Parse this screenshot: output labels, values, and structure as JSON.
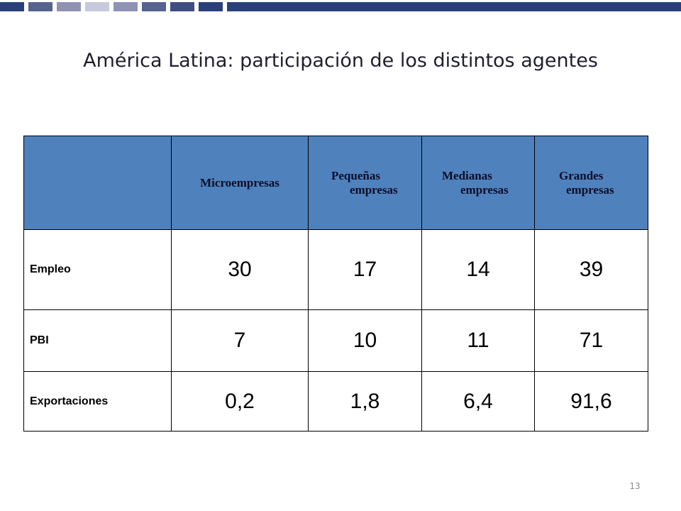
{
  "slide": {
    "title": "América Latina: participación de los distintos agentes",
    "number": "13",
    "colors": {
      "header_fill": "#4f81bd",
      "top_bar": "#2b3f7a"
    }
  },
  "table": {
    "columns": [
      {
        "line1": "",
        "line2": ""
      },
      {
        "line1": "Microempresas",
        "line2": ""
      },
      {
        "line1": "Pequeñas",
        "line2": "empresas"
      },
      {
        "line1": "Medianas",
        "line2": "empresas"
      },
      {
        "line1": "Grandes",
        "line2": "empresas"
      }
    ],
    "rows": [
      {
        "label": "Empleo",
        "values": [
          "30",
          "17",
          "14",
          "39"
        ]
      },
      {
        "label": "PBI",
        "values": [
          "7",
          "10",
          "11",
          "71"
        ]
      },
      {
        "label": "Exportaciones",
        "values": [
          "0,2",
          "1,8",
          "6,4",
          "91,6"
        ]
      }
    ]
  }
}
